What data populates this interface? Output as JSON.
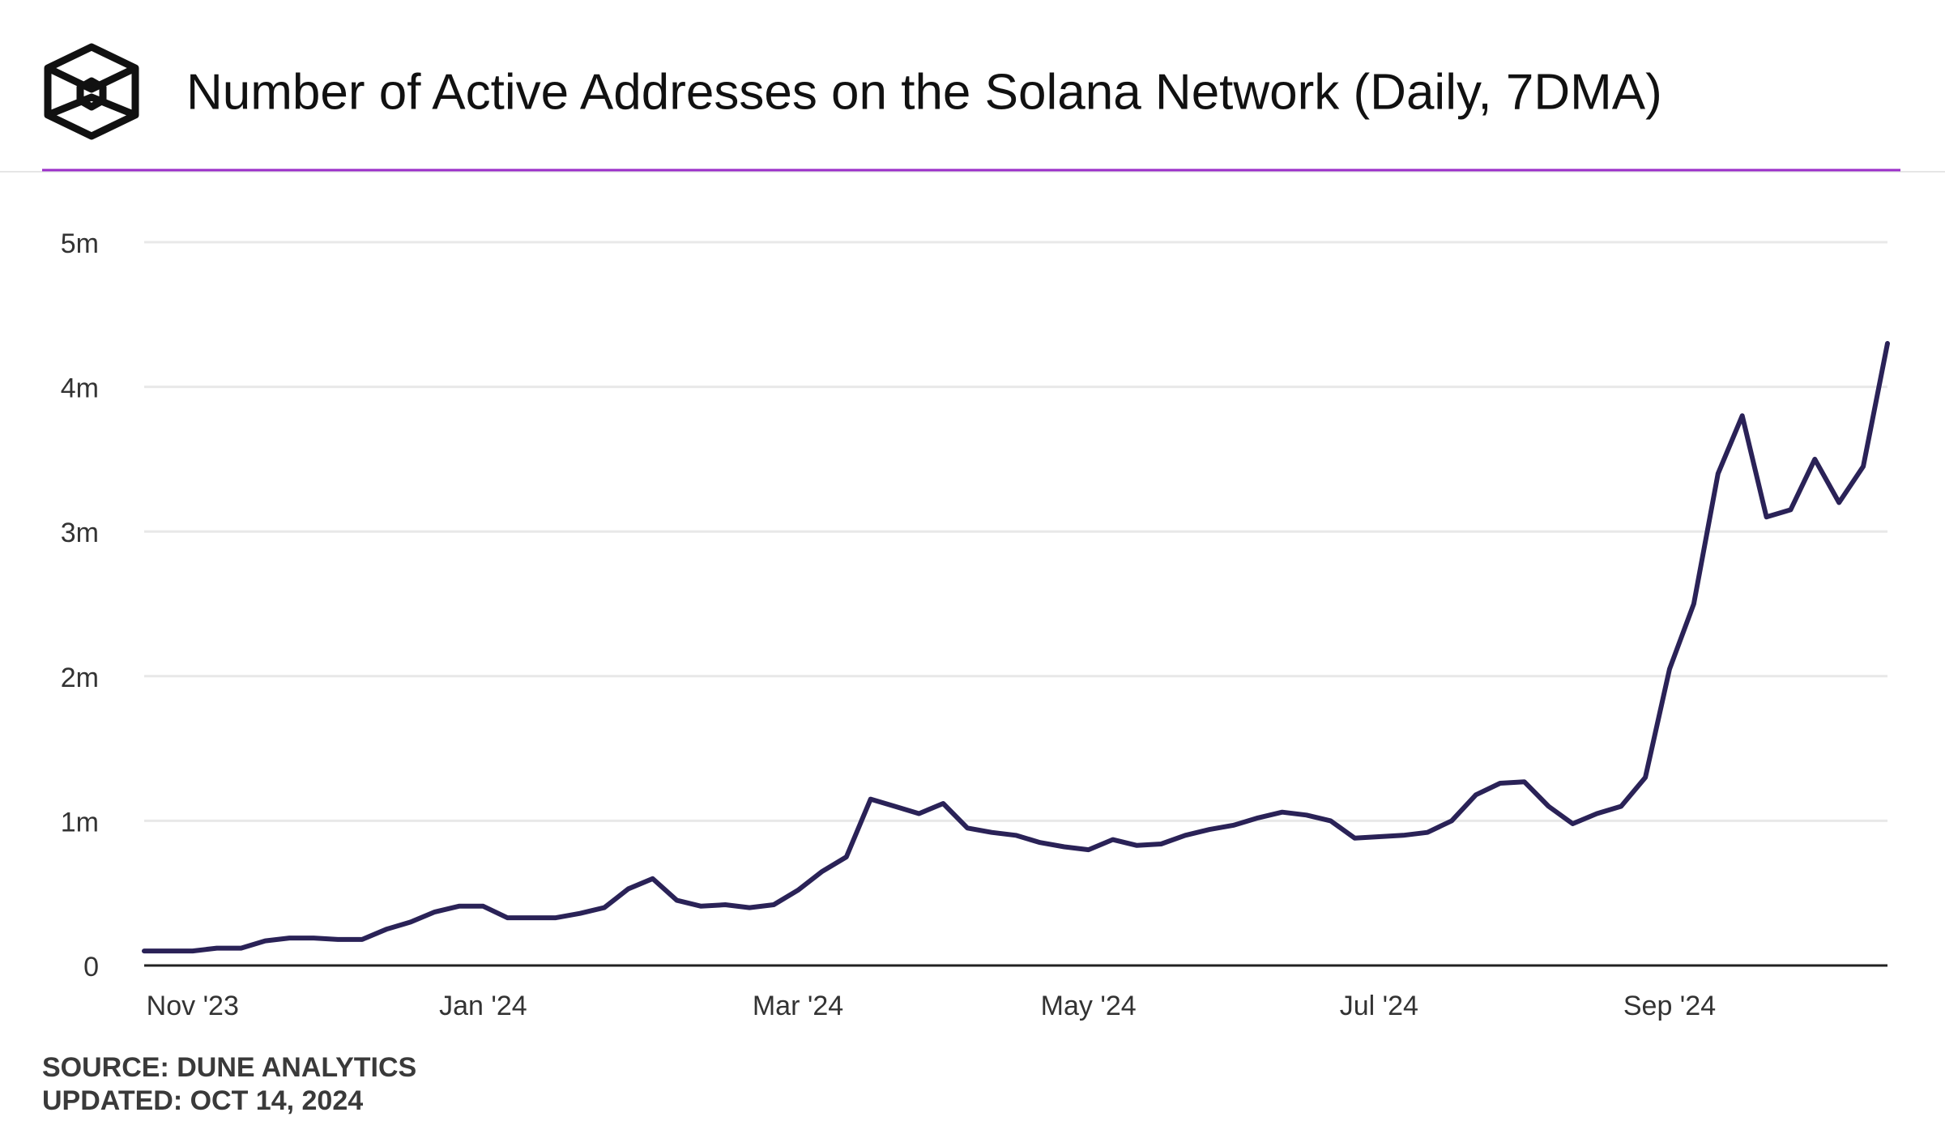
{
  "chart_data": {
    "type": "line",
    "title": "Number of Active Addresses on the Solana Network (Daily, 7DMA)",
    "source": "SOURCE: DUNE ANALYTICS",
    "updated": "UPDATED: OCT 14, 2024",
    "categories": [
      null,
      null,
      "Nov '23",
      null,
      null,
      null,
      null,
      null,
      null,
      null,
      null,
      null,
      null,
      null,
      "Jan '24",
      null,
      null,
      null,
      null,
      null,
      null,
      null,
      null,
      null,
      null,
      null,
      null,
      "Mar '24",
      null,
      null,
      null,
      null,
      null,
      null,
      null,
      null,
      null,
      null,
      null,
      "May '24",
      null,
      null,
      null,
      null,
      null,
      null,
      null,
      null,
      null,
      null,
      null,
      "Jul '24",
      null,
      null,
      null,
      null,
      null,
      null,
      null,
      null,
      null,
      null,
      null,
      "Sep '24",
      null,
      null,
      null,
      null,
      null,
      null,
      null,
      null,
      null
    ],
    "series": [
      {
        "name": "Active addresses",
        "color": "#2a2257",
        "values": [
          100000,
          100000,
          100000,
          120000,
          120000,
          170000,
          190000,
          190000,
          180000,
          180000,
          250000,
          300000,
          370000,
          410000,
          410000,
          330000,
          330000,
          330000,
          360000,
          400000,
          530000,
          600000,
          450000,
          410000,
          420000,
          400000,
          420000,
          520000,
          650000,
          750000,
          1150000,
          1100000,
          1050000,
          1120000,
          950000,
          920000,
          900000,
          850000,
          820000,
          800000,
          870000,
          830000,
          840000,
          900000,
          940000,
          970000,
          1020000,
          1060000,
          1040000,
          1000000,
          880000,
          890000,
          900000,
          920000,
          1000000,
          1180000,
          1260000,
          1270000,
          1100000,
          980000,
          1050000,
          1100000,
          1300000,
          2050000,
          2500000,
          3400000,
          3800000,
          3100000,
          3150000,
          3500000,
          3200000,
          3450000,
          4300000
        ]
      }
    ],
    "ylim": [
      0,
      5000000
    ],
    "yticks": [
      0,
      {
        "value": 1000000,
        "label": "1m"
      },
      {
        "value": 2000000,
        "label": "2m"
      },
      {
        "value": 3000000,
        "label": "3m"
      },
      {
        "value": 4000000,
        "label": "4m"
      },
      {
        "value": 5000000,
        "label": "5m"
      }
    ],
    "grid": true
  }
}
